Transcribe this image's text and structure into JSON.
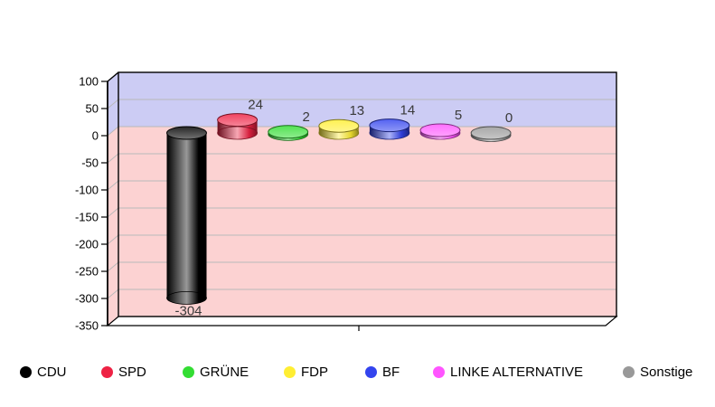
{
  "page": {
    "background": "#ffffff"
  },
  "chart_data": {
    "type": "bar",
    "style": "3d-cylinder",
    "title": "",
    "xlabel": "",
    "ylabel": "",
    "categories": [
      "CDU",
      "SPD",
      "GRÜNE",
      "FDP",
      "BF",
      "LINKE ALTERNATIVE",
      "Sonstige"
    ],
    "values": [
      -304,
      24,
      2,
      13,
      14,
      5,
      0
    ],
    "value_labels": [
      "-304",
      "24",
      "2",
      "13",
      "14",
      "5",
      "0"
    ],
    "colors": [
      "#000000",
      "#ee2244",
      "#33dd33",
      "#ffee33",
      "#3344ee",
      "#ff55ff",
      "#999999"
    ],
    "ylim": [
      -350,
      100
    ],
    "yticks": [
      100,
      50,
      0,
      -50,
      -100,
      -150,
      -200,
      -250,
      -300,
      -350
    ],
    "grid": true,
    "legend_position": "bottom",
    "positive_band_color": "#ccccf4",
    "negative_band_color": "#fcd2d2",
    "gridline_color": "#b9b9b9",
    "floor_color": "#ffffff",
    "outline_color": "#000000",
    "value_label_color": "#3a3a3a",
    "axis_label_color": "#000000"
  }
}
